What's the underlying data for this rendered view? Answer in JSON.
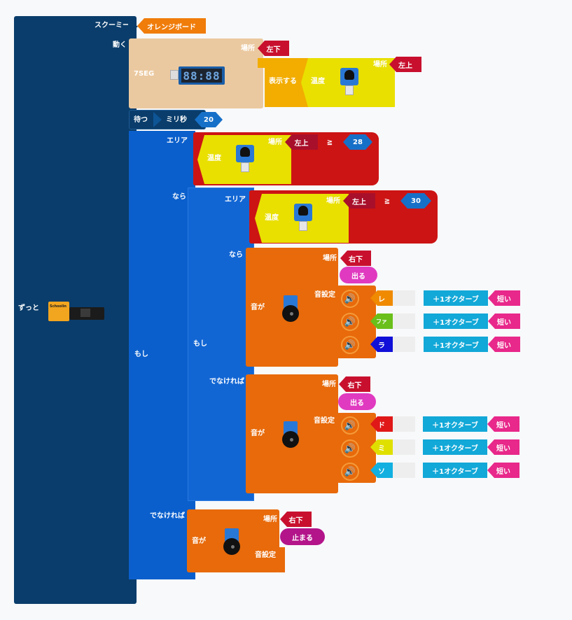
{
  "forever": {
    "label": "ずっと",
    "board_label": "Schoolin"
  },
  "sukumii": {
    "label": "スクーミー",
    "board": "オレンジボード"
  },
  "move": {
    "label": "動く"
  },
  "seg": {
    "label": "7SEG",
    "digits": "88:88",
    "place_label": "場所",
    "place": "左下",
    "display_label": "表示する",
    "temp_label": "温度",
    "temp_place_label": "場所",
    "temp_place": "左上"
  },
  "wait": {
    "label": "待つ",
    "unit": "ミリ秒",
    "value": "20"
  },
  "if1": {
    "if_label": "もし",
    "area_label": "エリア",
    "temp_label": "温度",
    "place_label": "場所",
    "place": "左上",
    "op": "≧",
    "value": "28",
    "then_label": "なら",
    "else_label": "でなければ"
  },
  "if2": {
    "if_label": "もし",
    "area_label": "エリア",
    "temp_label": "温度",
    "place_label": "場所",
    "place": "左上",
    "op": "≧",
    "value": "30",
    "then_label": "なら",
    "else_label": "でなければ"
  },
  "sound_then": {
    "sound_label": "音が",
    "place_label": "場所",
    "place": "右下",
    "action": "出る",
    "setting_label": "音設定",
    "notes": [
      {
        "note": "レ",
        "color": "#f08a00",
        "octave": "＋1オクターブ",
        "length": "短い"
      },
      {
        "note": "ファ",
        "color": "#6abf1a",
        "octave": "＋1オクターブ",
        "length": "短い"
      },
      {
        "note": "ラ",
        "color": "#1010d8",
        "octave": "＋1オクターブ",
        "length": "短い"
      }
    ]
  },
  "sound_else": {
    "sound_label": "音が",
    "place_label": "場所",
    "place": "右下",
    "action": "出る",
    "setting_label": "音設定",
    "notes": [
      {
        "note": "ド",
        "color": "#e01818",
        "octave": "＋1オクターブ",
        "length": "短い"
      },
      {
        "note": "ミ",
        "color": "#e0e000",
        "octave": "＋1オクターブ",
        "length": "短い"
      },
      {
        "note": "ソ",
        "color": "#12b0e0",
        "octave": "＋1オクターブ",
        "length": "短い"
      }
    ]
  },
  "sound_stop": {
    "sound_label": "音が",
    "place_label": "場所",
    "place": "右下",
    "action": "止まる",
    "setting_label": "音設定"
  },
  "colors": {
    "navy": "#0a3d6b",
    "blue": "#0a5fcc",
    "orange": "#e86a0a",
    "yellow": "#e9e000",
    "crimson": "#c8102e",
    "magenta": "#e03ac0"
  }
}
